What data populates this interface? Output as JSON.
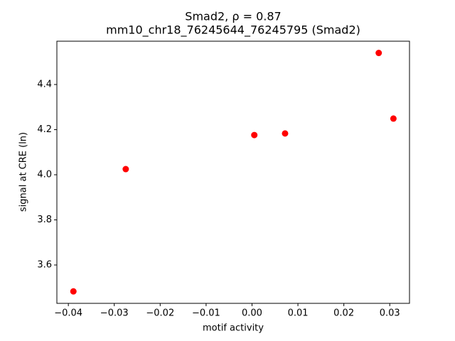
{
  "chart_data": {
    "type": "scatter",
    "title": "Smad2, ρ = 0.87",
    "subtitle": "mm10_chr18_76245644_76245795 (Smad2)",
    "x_label": "motif activity",
    "y_label": "signal at CRE (ln)",
    "x": [
      -0.0389,
      -0.0275,
      0.0005,
      0.0072,
      0.0276,
      0.0308
    ],
    "values": [
      3.483,
      4.025,
      4.176,
      4.183,
      4.54,
      4.249
    ],
    "color": "#ff0000",
    "xlim": [
      -0.0425,
      0.0343
    ],
    "ylim": [
      3.43,
      4.592
    ],
    "xticks": [
      {
        "value": -0.04,
        "label": "−0.04"
      },
      {
        "value": -0.03,
        "label": "−0.03"
      },
      {
        "value": -0.02,
        "label": "−0.02"
      },
      {
        "value": -0.01,
        "label": "−0.01"
      },
      {
        "value": 0,
        "label": "0.00"
      },
      {
        "value": 0.01,
        "label": "0.01"
      },
      {
        "value": 0.02,
        "label": "0.02"
      },
      {
        "value": 0.03,
        "label": "0.03"
      }
    ],
    "yticks": [
      {
        "value": 3.6,
        "label": "3.6"
      },
      {
        "value": 3.8,
        "label": "3.8"
      },
      {
        "value": 4.0,
        "label": "4.0"
      },
      {
        "value": 4.2,
        "label": "4.2"
      },
      {
        "value": 4.4,
        "label": "4.4"
      }
    ],
    "grid": false
  }
}
